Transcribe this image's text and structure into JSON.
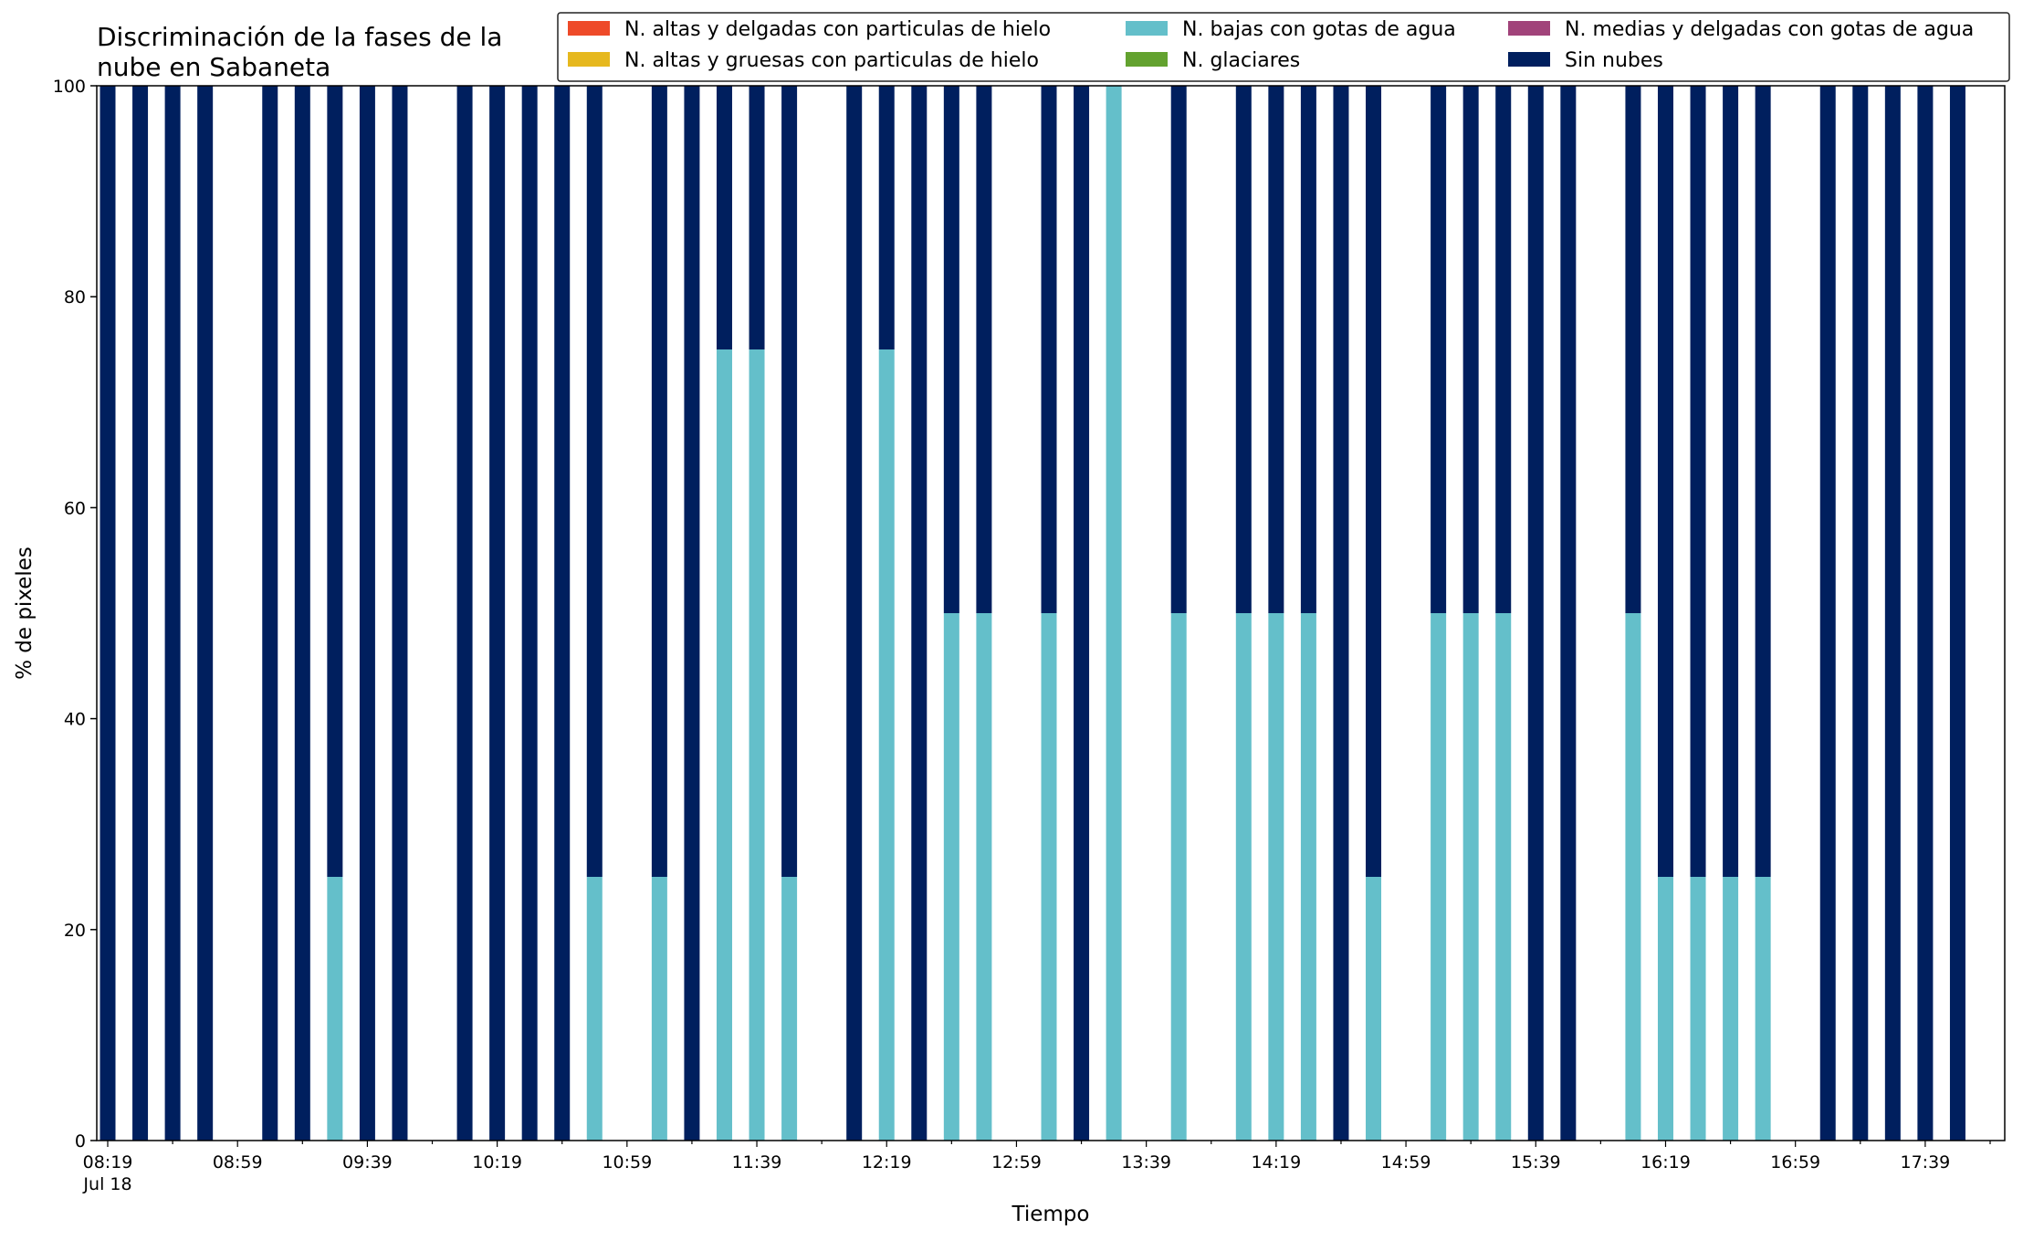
{
  "chart_data": {
    "type": "bar",
    "stacked": true,
    "title": "Discriminación de la fases de la nube en Sabaneta",
    "title_lines": [
      "Discriminación de la fases de la",
      "nube en Sabaneta"
    ],
    "xlabel": "Tiempo",
    "ylabel": "% de pixeles",
    "ylim": [
      0,
      100
    ],
    "yticks": [
      0,
      20,
      40,
      60,
      80,
      100
    ],
    "grid": false,
    "legend_position": "top-right",
    "x_start": "08:19",
    "x_end": "17:59",
    "x_step_minutes": 10,
    "date_label": "Jul 18",
    "xtick_labels": [
      "08:19",
      "08:59",
      "09:39",
      "10:19",
      "10:59",
      "11:39",
      "12:19",
      "12:59",
      "13:39",
      "14:19",
      "14:59",
      "15:39",
      "16:19",
      "16:59",
      "17:39"
    ],
    "x": [
      "08:19",
      "08:29",
      "08:39",
      "08:49",
      "08:59",
      "09:09",
      "09:19",
      "09:29",
      "09:39",
      "09:49",
      "09:59",
      "10:09",
      "10:19",
      "10:29",
      "10:39",
      "10:49",
      "10:59",
      "11:09",
      "11:19",
      "11:29",
      "11:39",
      "11:49",
      "11:59",
      "12:09",
      "12:19",
      "12:29",
      "12:39",
      "12:49",
      "12:59",
      "13:09",
      "13:19",
      "13:29",
      "13:39",
      "13:49",
      "13:59",
      "14:09",
      "14:19",
      "14:29",
      "14:39",
      "14:49",
      "14:59",
      "15:09",
      "15:19",
      "15:29",
      "15:39",
      "15:49",
      "15:59",
      "16:09",
      "16:19",
      "16:29",
      "16:39",
      "16:49",
      "16:59",
      "17:09",
      "17:19",
      "17:29",
      "17:39",
      "17:49"
    ],
    "series": [
      {
        "name": "N. altas y delgadas con particulas de hielo",
        "color": "#ee4a29",
        "values": [
          0,
          0,
          0,
          0,
          null,
          0,
          0,
          0,
          0,
          0,
          null,
          0,
          0,
          0,
          0,
          0,
          null,
          0,
          0,
          0,
          0,
          0,
          null,
          0,
          0,
          0,
          0,
          0,
          null,
          0,
          0,
          0,
          null,
          0,
          null,
          0,
          0,
          0,
          0,
          0,
          null,
          0,
          0,
          0,
          0,
          0,
          null,
          0,
          0,
          0,
          0,
          0,
          null,
          0,
          0,
          0,
          0,
          0
        ]
      },
      {
        "name": "N. altas y gruesas con particulas de hielo",
        "color": "#e6b81e",
        "values": [
          0,
          0,
          0,
          0,
          null,
          0,
          0,
          0,
          0,
          0,
          null,
          0,
          0,
          0,
          0,
          0,
          null,
          0,
          0,
          0,
          0,
          0,
          null,
          0,
          0,
          0,
          0,
          0,
          null,
          0,
          0,
          0,
          null,
          0,
          null,
          0,
          0,
          0,
          0,
          0,
          null,
          0,
          0,
          0,
          0,
          0,
          null,
          0,
          0,
          0,
          0,
          0,
          null,
          0,
          0,
          0,
          0,
          0
        ]
      },
      {
        "name": "N. bajas con gotas de agua",
        "color": "#64bfca",
        "values": [
          0,
          0,
          0,
          0,
          null,
          0,
          0,
          25,
          0,
          0,
          null,
          0,
          0,
          0,
          0,
          25,
          null,
          25,
          0,
          75,
          75,
          25,
          null,
          0,
          75,
          0,
          50,
          50,
          null,
          50,
          0,
          100,
          null,
          50,
          null,
          50,
          50,
          50,
          0,
          25,
          null,
          50,
          50,
          50,
          0,
          0,
          null,
          50,
          25,
          25,
          25,
          25,
          null,
          0,
          0,
          0,
          0,
          0
        ]
      },
      {
        "name": "N. glaciares",
        "color": "#63a22f",
        "values": [
          0,
          0,
          0,
          0,
          null,
          0,
          0,
          0,
          0,
          0,
          null,
          0,
          0,
          0,
          0,
          0,
          null,
          0,
          0,
          0,
          0,
          0,
          null,
          0,
          0,
          0,
          0,
          0,
          null,
          0,
          0,
          0,
          null,
          0,
          null,
          0,
          0,
          0,
          0,
          0,
          null,
          0,
          0,
          0,
          0,
          0,
          null,
          0,
          0,
          0,
          0,
          0,
          null,
          0,
          0,
          0,
          0,
          0
        ]
      },
      {
        "name": "N. medias y delgadas con gotas de agua",
        "color": "#a1437a",
        "values": [
          0,
          0,
          0,
          0,
          null,
          0,
          0,
          0,
          0,
          0,
          null,
          0,
          0,
          0,
          0,
          0,
          null,
          0,
          0,
          0,
          0,
          0,
          null,
          0,
          0,
          0,
          0,
          0,
          null,
          0,
          0,
          0,
          null,
          0,
          null,
          0,
          0,
          0,
          0,
          0,
          null,
          0,
          0,
          0,
          0,
          0,
          null,
          0,
          0,
          0,
          0,
          0,
          null,
          0,
          0,
          0,
          0,
          0
        ]
      },
      {
        "name": "Sin nubes",
        "color": "#001f5e",
        "values": [
          100,
          100,
          100,
          100,
          null,
          100,
          100,
          75,
          100,
          100,
          null,
          100,
          100,
          100,
          100,
          75,
          null,
          75,
          100,
          25,
          25,
          75,
          null,
          100,
          25,
          100,
          50,
          50,
          null,
          50,
          100,
          0,
          null,
          50,
          null,
          50,
          50,
          50,
          100,
          75,
          null,
          50,
          50,
          50,
          100,
          100,
          null,
          50,
          75,
          75,
          75,
          75,
          null,
          100,
          100,
          100,
          100,
          100
        ]
      }
    ]
  }
}
